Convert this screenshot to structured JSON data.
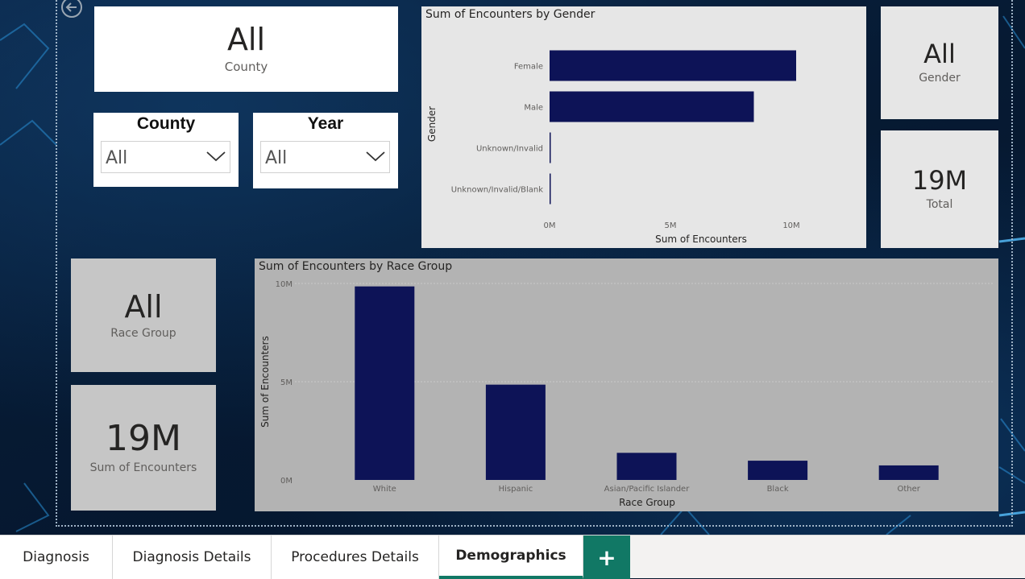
{
  "cards": {
    "county_kpi": {
      "value": "All",
      "label": "County"
    },
    "gender_kpi": {
      "value": "All",
      "label": "Gender"
    },
    "total_kpi": {
      "value": "19M",
      "label": "Total"
    },
    "race_kpi": {
      "value": "All",
      "label": "Race Group"
    },
    "encounters_kpi": {
      "value": "19M",
      "label": "Sum of Encounters"
    }
  },
  "slicers": {
    "county": {
      "title": "County",
      "value": "All"
    },
    "year": {
      "title": "Year",
      "value": "All"
    }
  },
  "chart_data": [
    {
      "type": "bar",
      "orientation": "horizontal",
      "title": "Sum of Encounters by Gender",
      "xlabel": "Sum of Encounters",
      "ylabel": "Gender",
      "categories": [
        "Female",
        "Male",
        "Unknown/Invalid",
        "Unknown/Invalid/Blank"
      ],
      "values": [
        10200000,
        8450000,
        50000,
        50000
      ],
      "xticks": [
        "0M",
        "5M",
        "10M"
      ],
      "xlim": [
        0,
        10800000
      ],
      "grid": false,
      "bar_color": "#0d1357"
    },
    {
      "type": "bar",
      "orientation": "vertical",
      "title": "Sum of Encounters by Race Group",
      "xlabel": "Race Group",
      "ylabel": "Sum of Encounters",
      "categories": [
        "White",
        "Hispanic",
        "Asian/Pacific Islander",
        "Black",
        "Other"
      ],
      "values": [
        9850000,
        4850000,
        1380000,
        980000,
        740000
      ],
      "yticks": [
        "10M",
        "5M",
        "0M"
      ],
      "ylim": [
        0,
        10000000
      ],
      "grid": true,
      "bar_color": "#0d1357"
    }
  ],
  "tabs": [
    {
      "label": "Diagnosis"
    },
    {
      "label": "Diagnosis Details"
    },
    {
      "label": "Procedures Details"
    },
    {
      "label": "Demographics"
    }
  ],
  "tab_add_label": "+",
  "colors": {
    "accent": "#117865",
    "bar": "#0d1357"
  }
}
